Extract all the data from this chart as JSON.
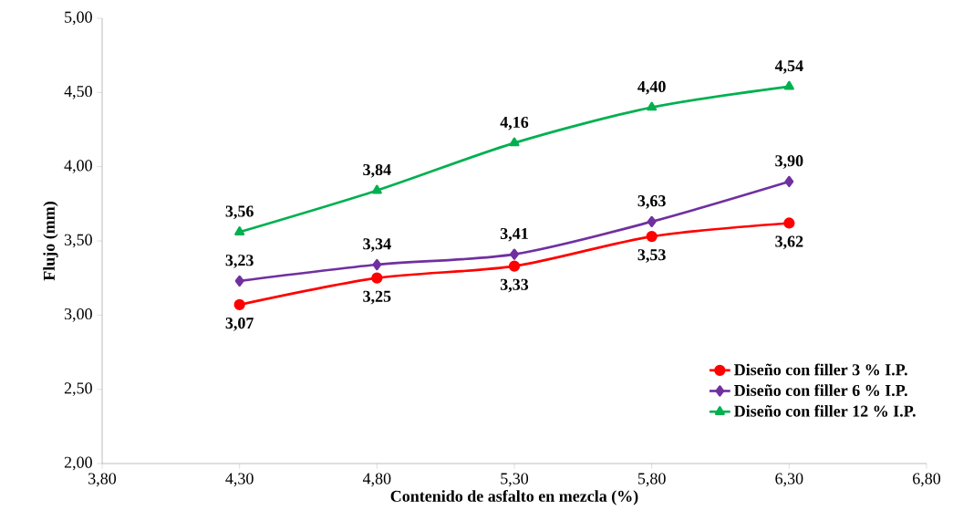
{
  "chart_data": {
    "type": "line",
    "xlabel": "Contenido de asfalto en mezcla (%)",
    "ylabel": "Flujo (mm)",
    "x": [
      4.3,
      4.8,
      5.3,
      5.8,
      6.3
    ],
    "xlim": [
      3.8,
      6.8
    ],
    "xticks": [
      {
        "value": 3.8,
        "label": "3,80"
      },
      {
        "value": 4.3,
        "label": "4,30"
      },
      {
        "value": 4.8,
        "label": "4,80"
      },
      {
        "value": 5.3,
        "label": "5,30"
      },
      {
        "value": 5.8,
        "label": "5,80"
      },
      {
        "value": 6.3,
        "label": "6,30"
      },
      {
        "value": 6.8,
        "label": "6,80"
      }
    ],
    "ylim": [
      2.0,
      5.0
    ],
    "yticks": [
      {
        "value": 2.0,
        "label": "2,00"
      },
      {
        "value": 2.5,
        "label": "2,50"
      },
      {
        "value": 3.0,
        "label": "3,00"
      },
      {
        "value": 3.5,
        "label": "3,50"
      },
      {
        "value": 4.0,
        "label": "4,00"
      },
      {
        "value": 4.5,
        "label": "4,50"
      },
      {
        "value": 5.0,
        "label": "5,00"
      }
    ],
    "series": [
      {
        "name": "Diseño con filler 3 % I.P.",
        "color": "#ff0000",
        "marker": "circle",
        "values": [
          3.07,
          3.25,
          3.33,
          3.53,
          3.62
        ],
        "value_labels": [
          "3,07",
          "3,25",
          "3,33",
          "3,53",
          "3,62"
        ]
      },
      {
        "name": "Diseño con filler 6 % I.P.",
        "color": "#7030a0",
        "marker": "diamond",
        "values": [
          3.23,
          3.34,
          3.41,
          3.63,
          3.9
        ],
        "value_labels": [
          "3,23",
          "3,34",
          "3,41",
          "3,63",
          "3,90"
        ]
      },
      {
        "name": "Diseño con filler 12 % I.P.",
        "color": "#00b050",
        "marker": "triangle",
        "values": [
          3.56,
          3.84,
          4.16,
          4.4,
          4.54
        ],
        "value_labels": [
          "3,56",
          "3,84",
          "4,16",
          "4,40",
          "4,54"
        ]
      }
    ],
    "legend": "bottom right",
    "grid": false,
    "line_style": "solid"
  }
}
